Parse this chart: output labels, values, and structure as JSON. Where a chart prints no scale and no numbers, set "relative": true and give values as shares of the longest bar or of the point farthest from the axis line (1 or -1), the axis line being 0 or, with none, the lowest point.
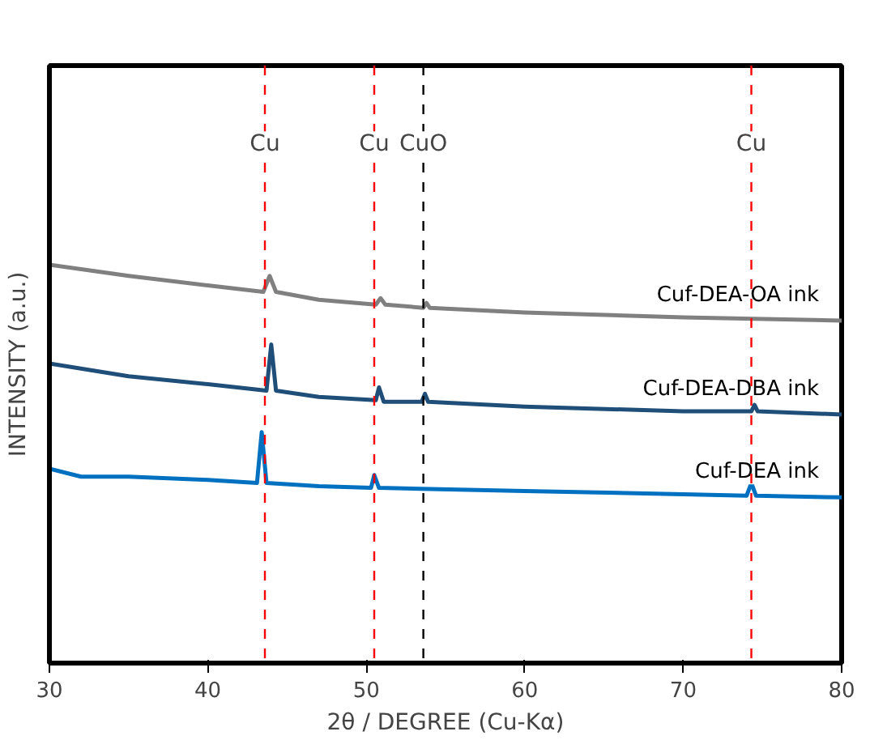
{
  "chart_data": {
    "type": "line",
    "relative": true,
    "xlabel": "2θ / DEGREE (Cu-Kα)",
    "ylabel": "INTENSITY (a.u.)",
    "xlim": [
      30,
      80
    ],
    "xticks": [
      30,
      40,
      50,
      60,
      70,
      80
    ],
    "grid": false,
    "marker": "none",
    "line_style": "solid",
    "series": [
      {
        "name": "Cuf-DEA-OA ink",
        "color": "#808080",
        "x": [
          30,
          35,
          40,
          43.5,
          43.9,
          44.3,
          47,
          50.6,
          50.9,
          51.2,
          53.6,
          53.8,
          54,
          60,
          70,
          80
        ],
        "values": [
          1.0,
          0.972,
          0.948,
          0.932,
          0.972,
          0.932,
          0.912,
          0.9,
          0.916,
          0.9,
          0.892,
          0.904,
          0.892,
          0.88,
          0.868,
          0.86
        ]
      },
      {
        "name": "Cuf-DEA-DBA ink",
        "color": "#1f4e79",
        "x": [
          30,
          35,
          40,
          43.7,
          44.0,
          44.3,
          47,
          50.6,
          50.8,
          51.1,
          53.5,
          53.7,
          53.9,
          60,
          70,
          74.3,
          74.5,
          74.7,
          80
        ],
        "values": [
          0.752,
          0.72,
          0.7,
          0.684,
          0.8,
          0.684,
          0.668,
          0.66,
          0.692,
          0.656,
          0.656,
          0.676,
          0.656,
          0.644,
          0.632,
          0.632,
          0.648,
          0.632,
          0.624
        ]
      },
      {
        "name": "Cuf-DEA ink",
        "color": "#0070c0",
        "x": [
          30,
          32,
          35,
          40,
          43.1,
          43.4,
          43.7,
          47,
          50.3,
          50.5,
          50.8,
          60,
          70,
          74.0,
          74.3,
          74.6,
          80
        ],
        "values": [
          0.488,
          0.468,
          0.468,
          0.46,
          0.452,
          0.58,
          0.452,
          0.444,
          0.44,
          0.472,
          0.44,
          0.432,
          0.424,
          0.42,
          0.452,
          0.42,
          0.416
        ]
      }
    ],
    "ref_lines": [
      {
        "axis": "x",
        "value": 43.6,
        "label": "Cu",
        "color": "#ff0000",
        "line_style": "dashed"
      },
      {
        "axis": "x",
        "value": 50.5,
        "label": "Cu",
        "color": "#ff0000",
        "line_style": "dashed"
      },
      {
        "axis": "x",
        "value": 53.6,
        "label": "CuO",
        "color": "#000000",
        "line_style": "dashed"
      },
      {
        "axis": "x",
        "value": 74.3,
        "label": "Cu",
        "color": "#ff0000",
        "line_style": "dashed"
      }
    ]
  }
}
